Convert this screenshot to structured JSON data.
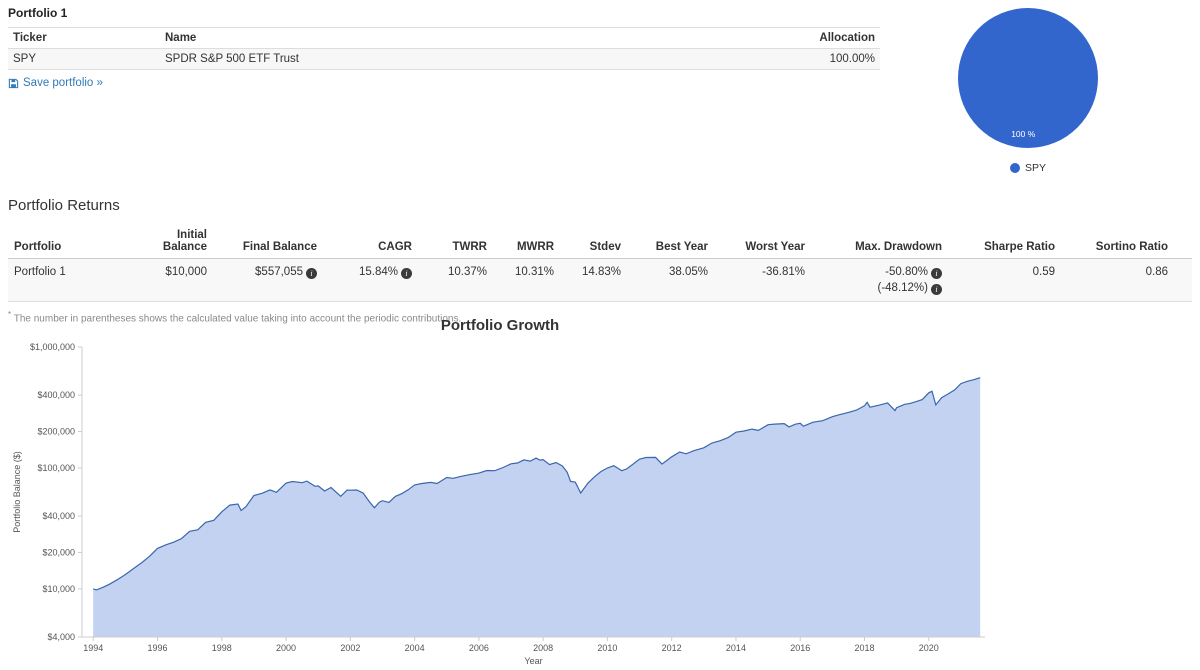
{
  "portfolio_card": {
    "title": "Portfolio 1",
    "columns": {
      "ticker": "Ticker",
      "name": "Name",
      "allocation": "Allocation"
    },
    "rows": [
      {
        "ticker": "SPY",
        "name": "SPDR S&P 500 ETF Trust",
        "allocation": "100.00%"
      }
    ],
    "save_link_label": "Save portfolio »"
  },
  "returns": {
    "section_title": "Portfolio Returns",
    "columns": [
      "Portfolio",
      "Initial Balance",
      "Final Balance",
      "CAGR",
      "TWRR",
      "MWRR",
      "Stdev",
      "Best Year",
      "Worst Year",
      "Max. Drawdown",
      "Sharpe Ratio",
      "Sortino Ratio"
    ],
    "row": {
      "portfolio": "Portfolio 1",
      "initial_balance": "$10,000",
      "final_balance": "$557,055",
      "cagr": "15.84%",
      "twrr": "10.37%",
      "mwrr": "10.31%",
      "stdev": "14.83%",
      "best_year": "38.05%",
      "worst_year": "-36.81%",
      "max_drawdown": "-50.80%",
      "max_drawdown_with_contributions": "(-48.12%)",
      "sharpe_ratio": "0.59",
      "sortino_ratio": "0.86"
    },
    "footnote_marker": "*",
    "footnote": "The number in parentheses shows the calculated value taking into account the periodic contributions."
  },
  "icons": {
    "info": "i"
  },
  "chart_data": [
    {
      "type": "area",
      "title": "Portfolio Growth",
      "xlabel": "Year",
      "ylabel": "Portfolio Balance ($)",
      "y_scale": "log",
      "grid": false,
      "xlim": [
        1993.65,
        2021.75
      ],
      "ylim": [
        4000,
        1000000
      ],
      "y_ticks": [
        4000,
        10000,
        20000,
        40000,
        100000,
        200000,
        400000,
        1000000
      ],
      "y_tick_labels": [
        "$4,000",
        "$10,000",
        "$20,000",
        "$40,000",
        "$100,000",
        "$200,000",
        "$400,000",
        "$1,000,000"
      ],
      "x_ticks": [
        1994,
        1996,
        1998,
        2000,
        2002,
        2004,
        2006,
        2008,
        2010,
        2012,
        2014,
        2016,
        2018,
        2020
      ],
      "line_color": "#3a66ad",
      "fill_color": "#c4d2f1",
      "series": [
        {
          "name": "Portfolio 1",
          "points": [
            [
              1994.0,
              10000
            ],
            [
              1994.1,
              9800
            ],
            [
              1994.3,
              10300
            ],
            [
              1994.5,
              10900
            ],
            [
              1994.75,
              11900
            ],
            [
              1995.0,
              13150
            ],
            [
              1995.25,
              14700
            ],
            [
              1995.5,
              16400
            ],
            [
              1995.75,
              18600
            ],
            [
              1996.0,
              21600
            ],
            [
              1996.25,
              23100
            ],
            [
              1996.5,
              24300
            ],
            [
              1996.75,
              26100
            ],
            [
              1997.0,
              29900
            ],
            [
              1997.25,
              30800
            ],
            [
              1997.5,
              35500
            ],
            [
              1997.75,
              36900
            ],
            [
              1998.0,
              43400
            ],
            [
              1998.25,
              49300
            ],
            [
              1998.5,
              50300
            ],
            [
              1998.6,
              44500
            ],
            [
              1998.75,
              47800
            ],
            [
              1999.0,
              59200
            ],
            [
              1999.25,
              61700
            ],
            [
              1999.5,
              65800
            ],
            [
              1999.7,
              62900
            ],
            [
              2000.0,
              74900
            ],
            [
              2000.2,
              77200
            ],
            [
              2000.5,
              75500
            ],
            [
              2000.65,
              77800
            ],
            [
              2000.9,
              70500
            ],
            [
              2001.0,
              71000
            ],
            [
              2001.2,
              64500
            ],
            [
              2001.4,
              68900
            ],
            [
              2001.7,
              58300
            ],
            [
              2001.9,
              65600
            ],
            [
              2002.0,
              65400
            ],
            [
              2002.2,
              65700
            ],
            [
              2002.4,
              61900
            ],
            [
              2002.6,
              52300
            ],
            [
              2002.75,
              46800
            ],
            [
              2002.9,
              52100
            ],
            [
              2003.0,
              53600
            ],
            [
              2003.2,
              51900
            ],
            [
              2003.4,
              58200
            ],
            [
              2003.6,
              61200
            ],
            [
              2003.8,
              65900
            ],
            [
              2004.0,
              72400
            ],
            [
              2004.25,
              74500
            ],
            [
              2004.5,
              75900
            ],
            [
              2004.7,
              74400
            ],
            [
              2005.0,
              83400
            ],
            [
              2005.2,
              82100
            ],
            [
              2005.4,
              84700
            ],
            [
              2005.7,
              87900
            ],
            [
              2006.0,
              90600
            ],
            [
              2006.25,
              95300
            ],
            [
              2006.5,
              94900
            ],
            [
              2006.75,
              100900
            ],
            [
              2007.0,
              108100
            ],
            [
              2007.2,
              109800
            ],
            [
              2007.4,
              116500
            ],
            [
              2007.6,
              113900
            ],
            [
              2007.78,
              120500
            ],
            [
              2007.9,
              116000
            ],
            [
              2008.0,
              117200
            ],
            [
              2008.2,
              106500
            ],
            [
              2008.4,
              110900
            ],
            [
              2008.6,
              103700
            ],
            [
              2008.75,
              92000
            ],
            [
              2008.85,
              77500
            ],
            [
              2009.0,
              76200
            ],
            [
              2009.17,
              62100
            ],
            [
              2009.4,
              75200
            ],
            [
              2009.6,
              84700
            ],
            [
              2009.8,
              93400
            ],
            [
              2010.0,
              99800
            ],
            [
              2010.2,
              104300
            ],
            [
              2010.45,
              94900
            ],
            [
              2010.6,
              98100
            ],
            [
              2010.8,
              107500
            ],
            [
              2011.0,
              118100
            ],
            [
              2011.2,
              121900
            ],
            [
              2011.5,
              122300
            ],
            [
              2011.7,
              107600
            ],
            [
              2011.85,
              115400
            ],
            [
              2012.0,
              123600
            ],
            [
              2012.25,
              135400
            ],
            [
              2012.45,
              130900
            ],
            [
              2012.7,
              139200
            ],
            [
              2013.0,
              146600
            ],
            [
              2013.25,
              160700
            ],
            [
              2013.5,
              167800
            ],
            [
              2013.75,
              177900
            ],
            [
              2014.0,
              197600
            ],
            [
              2014.25,
              201900
            ],
            [
              2014.5,
              209600
            ],
            [
              2014.7,
              204300
            ],
            [
              2015.0,
              227900
            ],
            [
              2015.2,
              230400
            ],
            [
              2015.5,
              232700
            ],
            [
              2015.65,
              218300
            ],
            [
              2015.85,
              230100
            ],
            [
              2016.0,
              234100
            ],
            [
              2016.1,
              221500
            ],
            [
              2016.4,
              238900
            ],
            [
              2016.7,
              245700
            ],
            [
              2017.0,
              265400
            ],
            [
              2017.25,
              277300
            ],
            [
              2017.5,
              288100
            ],
            [
              2017.75,
              300500
            ],
            [
              2018.0,
              326600
            ],
            [
              2018.08,
              349000
            ],
            [
              2018.17,
              318000
            ],
            [
              2018.45,
              330000
            ],
            [
              2018.72,
              345000
            ],
            [
              2018.95,
              298000
            ],
            [
              2019.0,
              315100
            ],
            [
              2019.25,
              335800
            ],
            [
              2019.4,
              340100
            ],
            [
              2019.6,
              352900
            ],
            [
              2019.8,
              367400
            ],
            [
              2020.0,
              417900
            ],
            [
              2020.1,
              431000
            ],
            [
              2020.22,
              332000
            ],
            [
              2020.4,
              381000
            ],
            [
              2020.6,
              409000
            ],
            [
              2020.8,
              441000
            ],
            [
              2021.0,
              498000
            ],
            [
              2021.2,
              520000
            ],
            [
              2021.4,
              537000
            ],
            [
              2021.6,
              557055
            ]
          ]
        }
      ]
    },
    {
      "type": "pie",
      "labels": [
        "SPY"
      ],
      "values": [
        100
      ],
      "colors": [
        "#3366cc"
      ],
      "slice_label": "100 %",
      "legend_position": "bottom"
    }
  ]
}
